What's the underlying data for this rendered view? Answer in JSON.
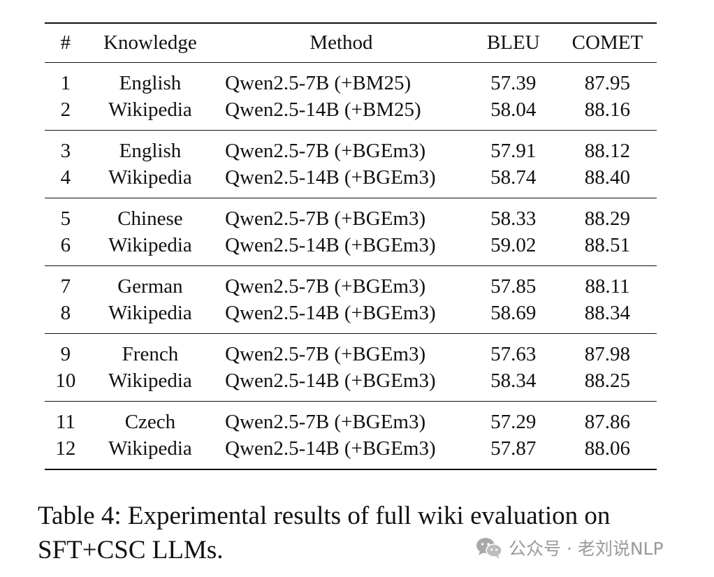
{
  "table": {
    "headers": [
      "#",
      "Knowledge",
      "Method",
      "BLEU",
      "COMET"
    ],
    "groups": [
      {
        "knowledge": [
          "English",
          "Wikipedia"
        ],
        "rows": [
          {
            "num": "1",
            "method": "Qwen2.5-7B (+BM25)",
            "bleu": "57.39",
            "comet": "87.95"
          },
          {
            "num": "2",
            "method": "Qwen2.5-14B (+BM25)",
            "bleu": "58.04",
            "comet": "88.16"
          }
        ]
      },
      {
        "knowledge": [
          "English",
          "Wikipedia"
        ],
        "rows": [
          {
            "num": "3",
            "method": "Qwen2.5-7B (+BGEm3)",
            "bleu": "57.91",
            "comet": "88.12"
          },
          {
            "num": "4",
            "method": "Qwen2.5-14B (+BGEm3)",
            "bleu": "58.74",
            "comet": "88.40"
          }
        ]
      },
      {
        "knowledge": [
          "Chinese",
          "Wikipedia"
        ],
        "rows": [
          {
            "num": "5",
            "method": "Qwen2.5-7B (+BGEm3)",
            "bleu": "58.33",
            "comet": "88.29"
          },
          {
            "num": "6",
            "method": "Qwen2.5-14B (+BGEm3)",
            "bleu": "59.02",
            "comet": "88.51"
          }
        ]
      },
      {
        "knowledge": [
          "German",
          "Wikipedia"
        ],
        "rows": [
          {
            "num": "7",
            "method": "Qwen2.5-7B (+BGEm3)",
            "bleu": "57.85",
            "comet": "88.11"
          },
          {
            "num": "8",
            "method": "Qwen2.5-14B (+BGEm3)",
            "bleu": "58.69",
            "comet": "88.34"
          }
        ]
      },
      {
        "knowledge": [
          "French",
          "Wikipedia"
        ],
        "rows": [
          {
            "num": "9",
            "method": "Qwen2.5-7B (+BGEm3)",
            "bleu": "57.63",
            "comet": "87.98"
          },
          {
            "num": "10",
            "method": "Qwen2.5-14B (+BGEm3)",
            "bleu": "58.34",
            "comet": "88.25"
          }
        ]
      },
      {
        "knowledge": [
          "Czech",
          "Wikipedia"
        ],
        "rows": [
          {
            "num": "11",
            "method": "Qwen2.5-7B (+BGEm3)",
            "bleu": "57.29",
            "comet": "87.86"
          },
          {
            "num": "12",
            "method": "Qwen2.5-14B (+BGEm3)",
            "bleu": "57.87",
            "comet": "88.06"
          }
        ]
      }
    ]
  },
  "caption": "Table 4: Experimental results of full wiki evaluation on SFT+CSC LLMs.",
  "watermark": {
    "icon": "wechat-icon",
    "text": "公众号 · 老刘说NLP",
    "color": "#9a9a9a"
  }
}
